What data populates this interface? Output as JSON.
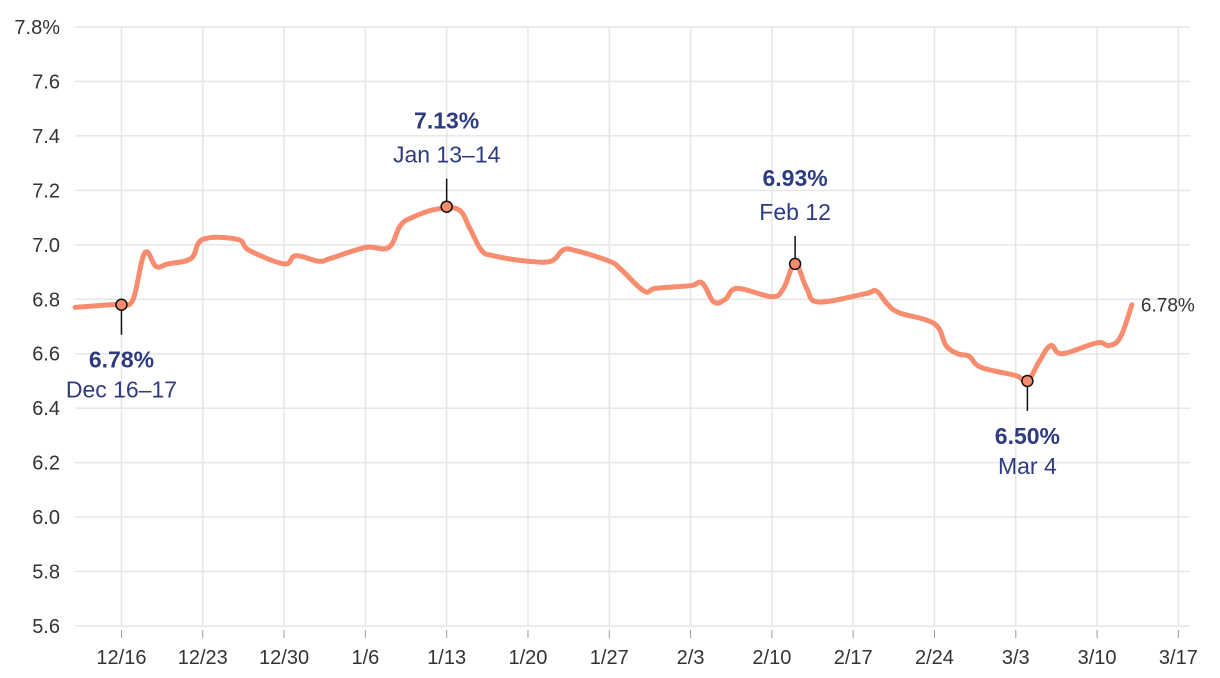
{
  "chart_data": {
    "type": "line",
    "title": "",
    "xlabel": "",
    "ylabel": "",
    "x_domain": [
      "2024-12-12",
      "2025-03-18"
    ],
    "ylim": [
      5.6,
      7.8
    ],
    "y_ticks": [
      5.6,
      5.8,
      6.0,
      6.2,
      6.4,
      6.6,
      6.8,
      7.0,
      7.2,
      7.4,
      7.6,
      7.8
    ],
    "y_tick_labels": [
      "5.6",
      "5.8",
      "6.0",
      "6.2",
      "6.4",
      "6.6",
      "6.8",
      "7.0",
      "7.2",
      "7.4",
      "7.6",
      "7.8%"
    ],
    "x_ticks": [
      "2024-12-16",
      "2024-12-23",
      "2024-12-30",
      "2025-01-06",
      "2025-01-13",
      "2025-01-20",
      "2025-01-27",
      "2025-02-03",
      "2025-02-10",
      "2025-02-17",
      "2025-02-24",
      "2025-03-03",
      "2025-03-10",
      "2025-03-17"
    ],
    "x_tick_labels": [
      "12/16",
      "12/23",
      "12/30",
      "1/6",
      "1/13",
      "1/20",
      "1/27",
      "2/3",
      "2/10",
      "2/17",
      "2/24",
      "3/3",
      "3/10",
      "3/17"
    ],
    "grid": true,
    "line_color": "#f88c6f",
    "annotation_color": "#2e3b80",
    "series": [
      {
        "points": [
          [
            "2024-12-12",
            6.77
          ],
          [
            "2024-12-15",
            6.78
          ],
          [
            "2024-12-16",
            6.78
          ],
          [
            "2024-12-17",
            6.8
          ],
          [
            "2024-12-18",
            6.97
          ],
          [
            "2024-12-19",
            6.92
          ],
          [
            "2024-12-20",
            6.93
          ],
          [
            "2024-12-22",
            6.95
          ],
          [
            "2024-12-23",
            7.02
          ],
          [
            "2024-12-26",
            7.02
          ],
          [
            "2024-12-27",
            6.98
          ],
          [
            "2024-12-30",
            6.93
          ],
          [
            "2024-12-31",
            6.96
          ],
          [
            "2025-01-02",
            6.94
          ],
          [
            "2025-01-03",
            6.95
          ],
          [
            "2025-01-06",
            6.99
          ],
          [
            "2025-01-08",
            6.99
          ],
          [
            "2025-01-09",
            7.07
          ],
          [
            "2025-01-10",
            7.1
          ],
          [
            "2025-01-12",
            7.13
          ],
          [
            "2025-01-14",
            7.13
          ],
          [
            "2025-01-15",
            7.06
          ],
          [
            "2025-01-16",
            6.98
          ],
          [
            "2025-01-17",
            6.96
          ],
          [
            "2025-01-20",
            6.94
          ],
          [
            "2025-01-22",
            6.94
          ],
          [
            "2025-01-23",
            6.98
          ],
          [
            "2025-01-24",
            6.98
          ],
          [
            "2025-01-27",
            6.94
          ],
          [
            "2025-01-28",
            6.91
          ],
          [
            "2025-01-30",
            6.83
          ],
          [
            "2025-01-31",
            6.84
          ],
          [
            "2025-02-03",
            6.85
          ],
          [
            "2025-02-04",
            6.86
          ],
          [
            "2025-02-05",
            6.79
          ],
          [
            "2025-02-06",
            6.8
          ],
          [
            "2025-02-07",
            6.84
          ],
          [
            "2025-02-10",
            6.81
          ],
          [
            "2025-02-11",
            6.84
          ],
          [
            "2025-02-12",
            6.93
          ],
          [
            "2025-02-13",
            6.84
          ],
          [
            "2025-02-14",
            6.79
          ],
          [
            "2025-02-18",
            6.82
          ],
          [
            "2025-02-19",
            6.83
          ],
          [
            "2025-02-20",
            6.78
          ],
          [
            "2025-02-21",
            6.75
          ],
          [
            "2025-02-24",
            6.71
          ],
          [
            "2025-02-25",
            6.63
          ],
          [
            "2025-02-26",
            6.6
          ],
          [
            "2025-02-27",
            6.59
          ],
          [
            "2025-02-28",
            6.55
          ],
          [
            "2025-03-03",
            6.52
          ],
          [
            "2025-03-04",
            6.5
          ],
          [
            "2025-03-05",
            6.57
          ],
          [
            "2025-03-06",
            6.63
          ],
          [
            "2025-03-07",
            6.6
          ],
          [
            "2025-03-10",
            6.64
          ],
          [
            "2025-03-11",
            6.63
          ],
          [
            "2025-03-12",
            6.66
          ],
          [
            "2025-03-13",
            6.78
          ]
        ]
      }
    ],
    "annotations": [
      {
        "x": "2024-12-16",
        "y": 6.78,
        "value": "6.78%",
        "label": "Dec 16–17",
        "position": "below"
      },
      {
        "x": "2025-01-13",
        "y": 7.14,
        "value": "7.13%",
        "label": "Jan 13–14",
        "position": "above"
      },
      {
        "x": "2025-02-12",
        "y": 6.93,
        "value": "6.93%",
        "label": "Feb 12",
        "position": "above"
      },
      {
        "x": "2025-03-04",
        "y": 6.5,
        "value": "6.50%",
        "label": "Mar 4",
        "position": "below"
      }
    ],
    "end_label": "6.78%"
  }
}
